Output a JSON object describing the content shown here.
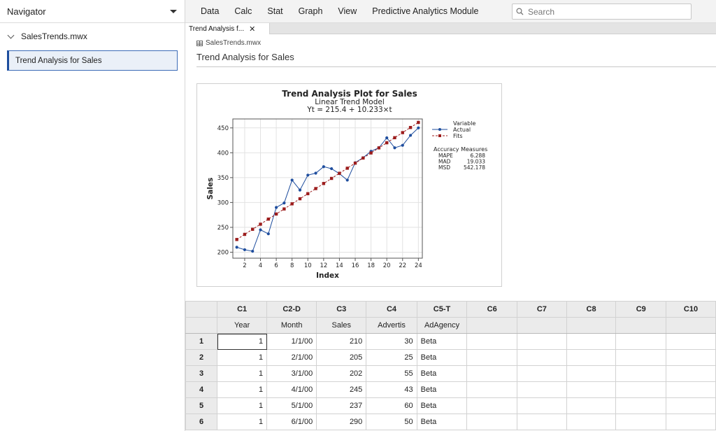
{
  "navigator": {
    "title": "Navigator",
    "file": "SalesTrends.mwx",
    "item": "Trend Analysis for Sales"
  },
  "menu": [
    "Data",
    "Calc",
    "Stat",
    "Graph",
    "View",
    "Predictive Analytics Module"
  ],
  "search": {
    "placeholder": "Search"
  },
  "tab": {
    "label": "Trend Analysis f...",
    "close": "✕"
  },
  "document": {
    "file": "SalesTrends.mwx",
    "title": "Trend Analysis for Sales"
  },
  "chart_data": {
    "type": "line",
    "title": "Trend Analysis Plot for Sales",
    "subtitle": "Linear Trend Model",
    "equation": "Yt = 215.4 + 10.233×t",
    "xlabel": "Index",
    "ylabel": "Sales",
    "xlim": [
      0.5,
      24.5
    ],
    "ylim": [
      188,
      468
    ],
    "xticks": [
      2,
      4,
      6,
      8,
      10,
      12,
      14,
      16,
      18,
      20,
      22,
      24
    ],
    "yticks": [
      200,
      250,
      300,
      350,
      400,
      450
    ],
    "grid": true,
    "legend": {
      "title": "Variable",
      "placement": "right"
    },
    "x": [
      1,
      2,
      3,
      4,
      5,
      6,
      7,
      8,
      9,
      10,
      11,
      12,
      13,
      14,
      15,
      16,
      17,
      18,
      19,
      20,
      21,
      22,
      23,
      24
    ],
    "series": [
      {
        "name": "Actual",
        "color": "#1f4e9e",
        "marker": "circle",
        "values": [
          210,
          205,
          202,
          245,
          237,
          290,
          299,
          345,
          325,
          355,
          359,
          372,
          368,
          358,
          345,
          380,
          390,
          403,
          410,
          430,
          410,
          415,
          435,
          450
        ]
      },
      {
        "name": "Fits",
        "color": "#9c1c1c",
        "marker": "square",
        "values": [
          225.6,
          235.9,
          246.1,
          256.3,
          266.6,
          276.8,
          287.0,
          297.3,
          307.5,
          317.7,
          328.0,
          338.2,
          348.4,
          358.7,
          368.9,
          379.1,
          389.4,
          399.6,
          409.8,
          420.1,
          430.3,
          440.5,
          450.8,
          461.0
        ]
      }
    ],
    "accuracy": {
      "title": "Accuracy Measures",
      "rows": [
        [
          "MAPE",
          "6.288"
        ],
        [
          "MAD",
          "19.033"
        ],
        [
          "MSD",
          "542.178"
        ]
      ]
    }
  },
  "worksheet": {
    "columns": [
      "C1",
      "C2-D",
      "C3",
      "C4",
      "C5-T",
      "C6",
      "C7",
      "C8",
      "C9",
      "C10"
    ],
    "names": [
      "Year",
      "Month",
      "Sales",
      "Advertis",
      "AdAgency",
      "",
      "",
      "",
      "",
      ""
    ],
    "rows": [
      [
        "1",
        "1",
        "1/1/00",
        "210",
        "30",
        "Beta"
      ],
      [
        "2",
        "1",
        "2/1/00",
        "205",
        "25",
        "Beta"
      ],
      [
        "3",
        "1",
        "3/1/00",
        "202",
        "55",
        "Beta"
      ],
      [
        "4",
        "1",
        "4/1/00",
        "245",
        "43",
        "Beta"
      ],
      [
        "5",
        "1",
        "5/1/00",
        "237",
        "60",
        "Beta"
      ],
      [
        "6",
        "1",
        "6/1/00",
        "290",
        "50",
        "Beta"
      ]
    ]
  }
}
